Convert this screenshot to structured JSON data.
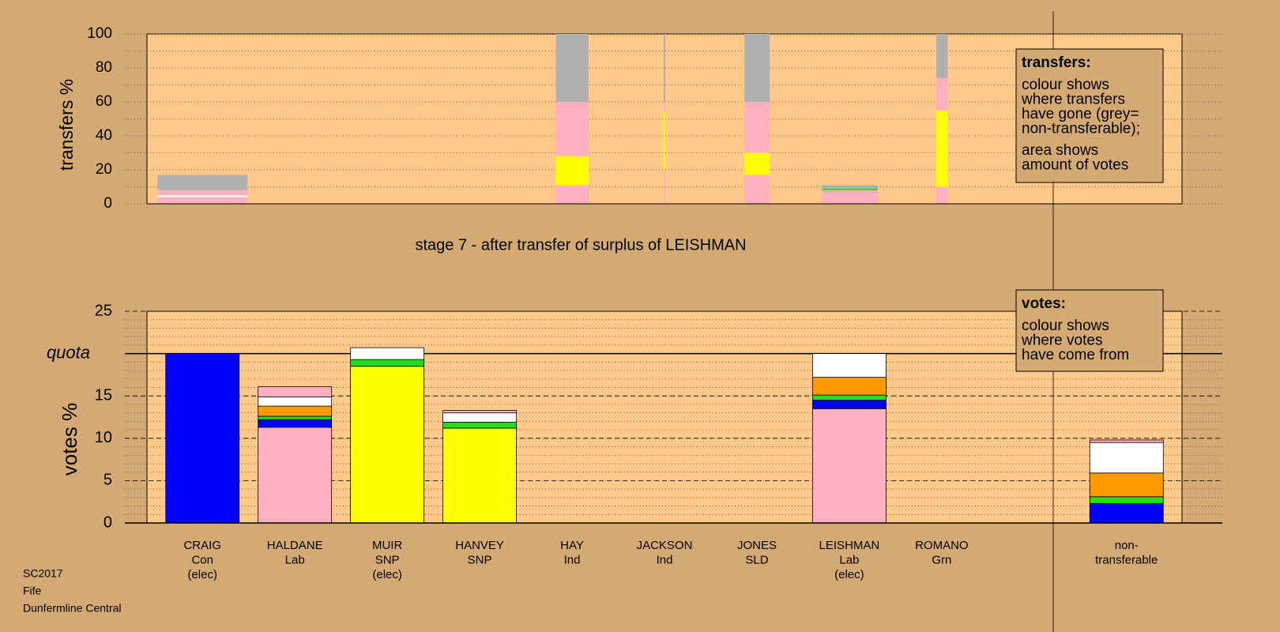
{
  "chart_data": [
    {
      "type": "stacked-bar",
      "title": "stage 7 - after transfer of surplus of LEISHMAN",
      "y_label": "transfers %",
      "ylim": [
        0,
        100
      ],
      "yticks": [
        0,
        20,
        40,
        60,
        80,
        100
      ],
      "grid": true,
      "legend": {
        "title": "transfers:",
        "paragraphs": [
          [
            "colour shows",
            "where transfers",
            "have gone (grey=",
            "non-transferable);"
          ],
          [
            "area shows",
            "amount of votes"
          ]
        ]
      },
      "columns": [
        [
          {
            "color": "#ffb0c0",
            "value": 4
          },
          {
            "color": "#ffffff",
            "value": 1
          },
          {
            "color": "#ffb0c0",
            "value": 3
          },
          {
            "color": "#b0b0b0",
            "value": 9
          }
        ],
        [
          {
            "color": "#ffb0c0",
            "value": 11
          },
          {
            "color": "#ffff00",
            "value": 17
          },
          {
            "color": "#ffb0c0",
            "value": 32
          },
          {
            "color": "#b0b0b0",
            "value": 40
          }
        ],
        [
          {
            "color": "#ffb0c0",
            "value": 20
          },
          {
            "color": "#ffff00",
            "value": 34
          },
          {
            "color": "#ffb0c0",
            "value": 6
          },
          {
            "color": "#b0b0b0",
            "value": 40
          }
        ],
        [
          {
            "color": "#ffb0c0",
            "value": 17
          },
          {
            "color": "#ffff00",
            "value": 13
          },
          {
            "color": "#ffb0c0",
            "value": 30
          },
          {
            "color": "#b0b0b0",
            "value": 40
          }
        ],
        [
          {
            "color": "#ffb0c0",
            "value": 8
          },
          {
            "color": "#22dd22",
            "value": 1
          },
          {
            "color": "#b0b0b0",
            "value": 2
          }
        ],
        [
          {
            "color": "#ffb0c0",
            "value": 10
          },
          {
            "color": "#ffff00",
            "value": 45
          },
          {
            "color": "#ffb0c0",
            "value": 19
          },
          {
            "color": "#b0b0b0",
            "value": 26
          }
        ]
      ]
    },
    {
      "type": "stacked-bar",
      "y_label": "votes %",
      "ylim": [
        0,
        25
      ],
      "yticks": [
        0,
        5,
        10,
        15,
        20,
        25
      ],
      "grid": true,
      "quota": {
        "value": 20,
        "label": "quota"
      },
      "legend": {
        "title": "votes:",
        "paragraphs": [
          [
            "colour shows",
            "where votes",
            "have come from"
          ]
        ]
      },
      "categories": [
        [
          "CRAIG",
          "Con",
          "(elec)"
        ],
        [
          "HALDANE",
          "Lab"
        ],
        [
          "MUIR",
          "SNP",
          "(elec)"
        ],
        [
          "HANVEY",
          "SNP"
        ],
        [
          "HAY",
          "Ind"
        ],
        [
          "JACKSON",
          "Ind"
        ],
        [
          "JONES",
          "SLD"
        ],
        [
          "LEISHMAN",
          "Lab",
          "(elec)"
        ],
        [
          "ROMANO",
          "Grn"
        ],
        [
          "non-",
          "transferable"
        ]
      ],
      "stacks": [
        [
          {
            "color": "#0000ff",
            "value": 20
          }
        ],
        [
          {
            "color": "#ffb0c0",
            "value": 11.3
          },
          {
            "color": "#0000ff",
            "value": 0.9
          },
          {
            "color": "#22dd22",
            "value": 0.4
          },
          {
            "color": "#ff9900",
            "value": 1.2
          },
          {
            "color": "#ffffff",
            "value": 1.1
          },
          {
            "color": "#ffb0c0",
            "value": 1.2
          }
        ],
        [
          {
            "color": "#ffff00",
            "value": 18.5
          },
          {
            "color": "#22dd22",
            "value": 0.8
          },
          {
            "color": "#ffffff",
            "value": 1.4
          }
        ],
        [
          {
            "color": "#ffff00",
            "value": 11.2
          },
          {
            "color": "#22dd22",
            "value": 0.7
          },
          {
            "color": "#ffffff",
            "value": 1.1
          },
          {
            "color": "#ffb0c0",
            "value": 0.3
          }
        ],
        [],
        [],
        [],
        [
          {
            "color": "#ffb0c0",
            "value": 13.5
          },
          {
            "color": "#0000ff",
            "value": 1.0
          },
          {
            "color": "#22dd22",
            "value": 0.6
          },
          {
            "color": "#ff9900",
            "value": 2.1
          },
          {
            "color": "#ffffff",
            "value": 2.8
          }
        ],
        [],
        [
          {
            "color": "#0000ff",
            "value": 2.3
          },
          {
            "color": "#22dd22",
            "value": 0.8
          },
          {
            "color": "#ff9900",
            "value": 2.8
          },
          {
            "color": "#ffffff",
            "value": 3.6
          },
          {
            "color": "#ffb0c0",
            "value": 0.3
          }
        ]
      ]
    }
  ],
  "footer": [
    "SC2017",
    "Fife",
    "Dunfermline Central"
  ]
}
